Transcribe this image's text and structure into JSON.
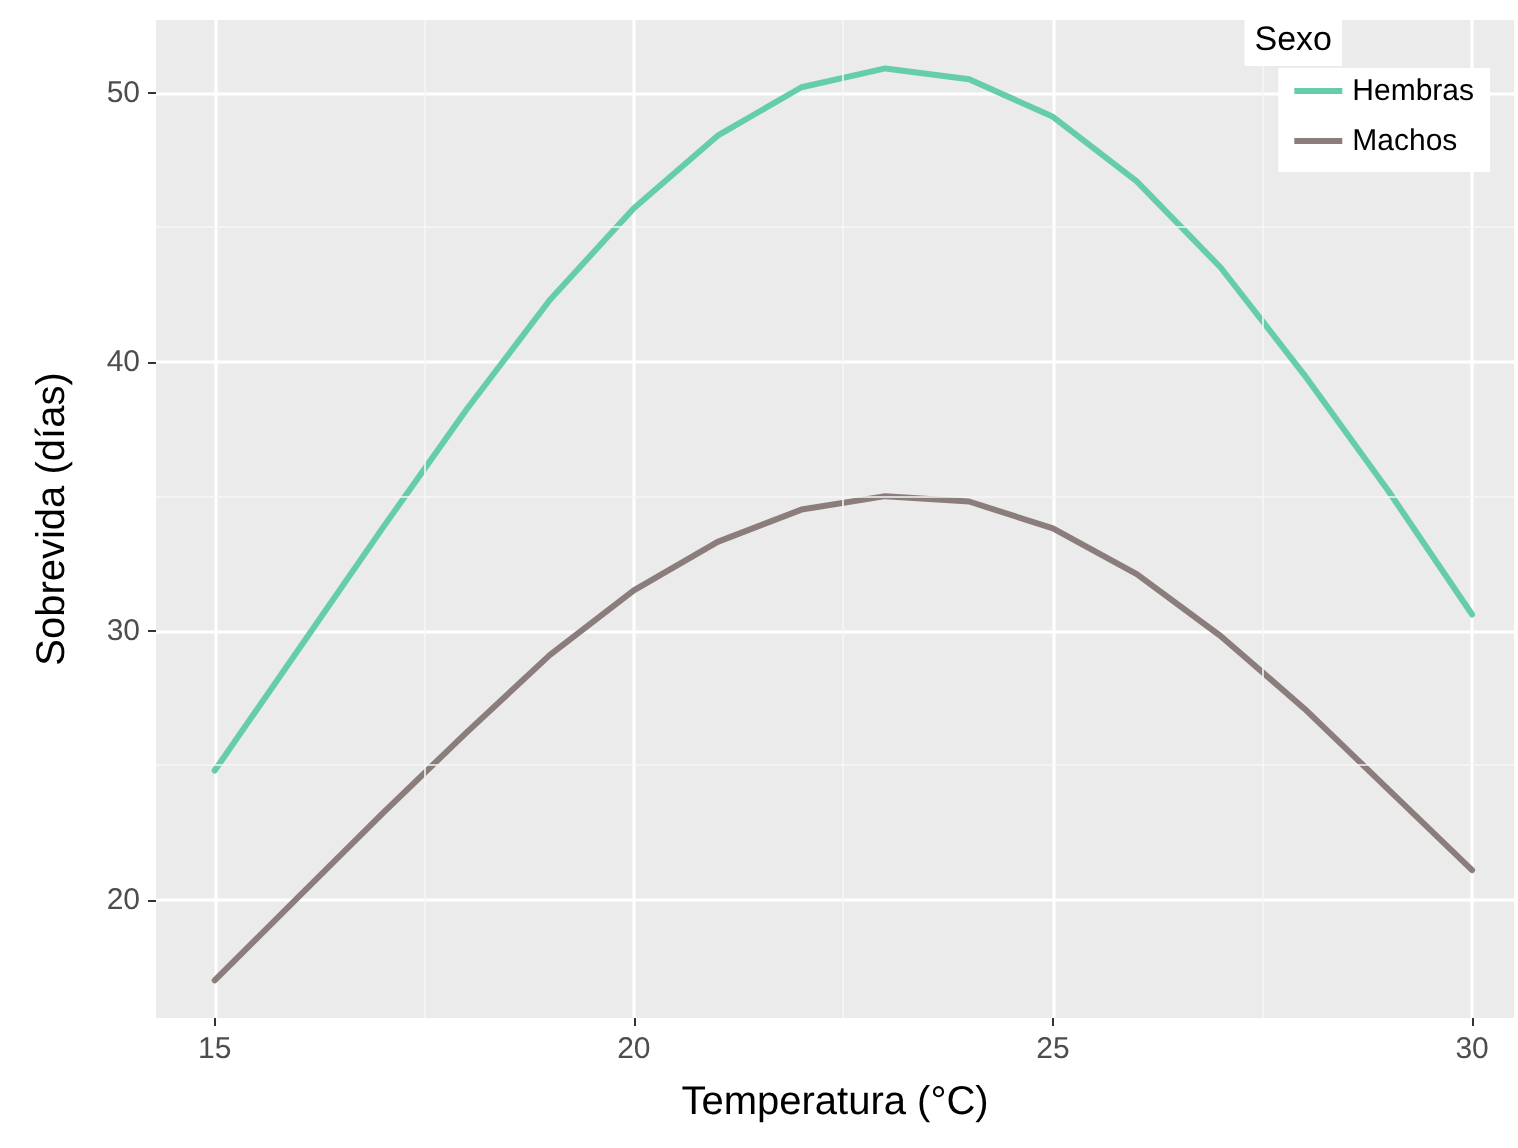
{
  "chart_data": {
    "type": "line",
    "xlabel": "Temperatura (°C)",
    "ylabel": "Sobrevida (días)",
    "legend_title": "Sexo",
    "legend": "top right",
    "grid": true,
    "marker": "none",
    "line_style": "solid",
    "x": [
      15,
      16,
      17,
      18,
      19,
      20,
      21,
      22,
      23,
      24,
      25,
      26,
      27,
      28,
      29,
      30
    ],
    "xlim": [
      14.3,
      30.5
    ],
    "xticks": [
      15,
      20,
      25,
      30
    ],
    "ylim": [
      15.6,
      52.7
    ],
    "yticks": [
      20,
      30,
      40,
      50
    ],
    "series": [
      {
        "name": "Hembras",
        "color": "#66cdaa",
        "values": [
          24.8,
          29.3,
          33.8,
          38.2,
          42.3,
          45.7,
          48.4,
          50.2,
          50.9,
          50.5,
          49.1,
          46.7,
          43.5,
          39.5,
          35.2,
          30.6
        ]
      },
      {
        "name": "Machos",
        "color": "#8b7d7b",
        "values": [
          17.0,
          20.1,
          23.2,
          26.2,
          29.1,
          31.5,
          33.3,
          34.5,
          35.0,
          34.8,
          33.8,
          32.1,
          29.8,
          27.1,
          24.1,
          21.1
        ]
      }
    ]
  }
}
